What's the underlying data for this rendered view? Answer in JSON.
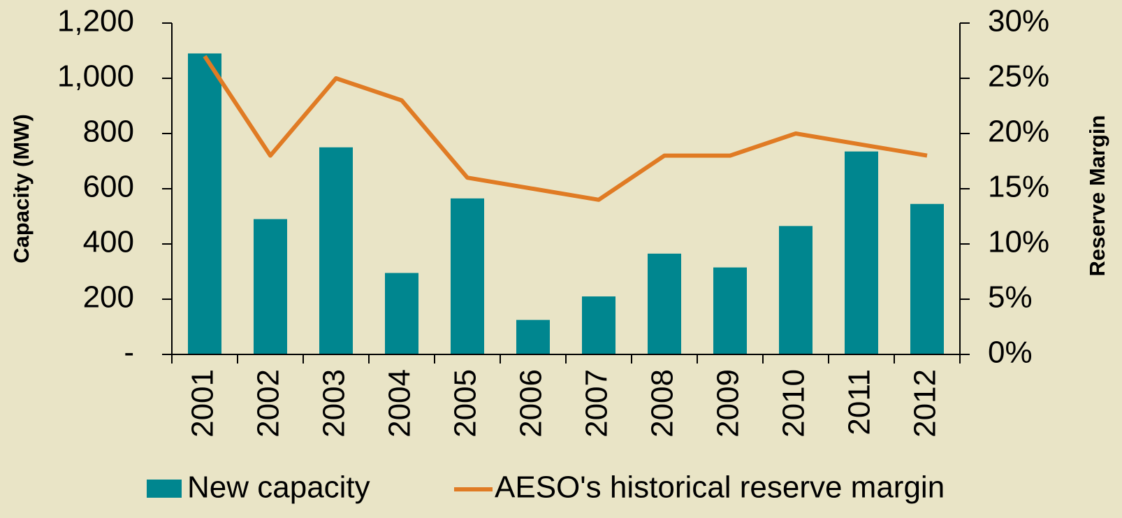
{
  "chart_data": {
    "type": "bar_line",
    "categories": [
      "2001",
      "2002",
      "2003",
      "2004",
      "2005",
      "2006",
      "2007",
      "2008",
      "2009",
      "2010",
      "2011",
      "2012"
    ],
    "series": [
      {
        "name": "New capacity",
        "type": "bar",
        "color": "#00868f",
        "values": [
          1090,
          490,
          750,
          295,
          565,
          125,
          210,
          365,
          315,
          465,
          735,
          545
        ]
      },
      {
        "name": "AESO's historical reserve margin",
        "type": "line",
        "axis": "y2",
        "color": "#e07b24",
        "values": [
          27,
          18,
          25,
          23,
          16,
          15,
          14,
          18,
          18,
          20,
          19,
          18
        ]
      }
    ],
    "ylabel": "Capacity (MW)",
    "y2label": "Reserve Margin",
    "ylim": [
      0,
      1200
    ],
    "yticks": [
      {
        "value": 0,
        "label": "-"
      },
      200,
      400,
      600,
      800,
      {
        "value": 1000,
        "label": "1,000"
      },
      {
        "value": 1200,
        "label": "1,200"
      }
    ],
    "y2lim": [
      0,
      30
    ],
    "y2ticks": [
      {
        "value": 0,
        "label": "0%"
      },
      {
        "value": 5,
        "label": "5%"
      },
      {
        "value": 10,
        "label": "10%"
      },
      {
        "value": 15,
        "label": "15%"
      },
      {
        "value": 20,
        "label": "20%"
      },
      {
        "value": 25,
        "label": "25%"
      },
      {
        "value": 30,
        "label": "30%"
      }
    ],
    "legend": "bottom"
  }
}
